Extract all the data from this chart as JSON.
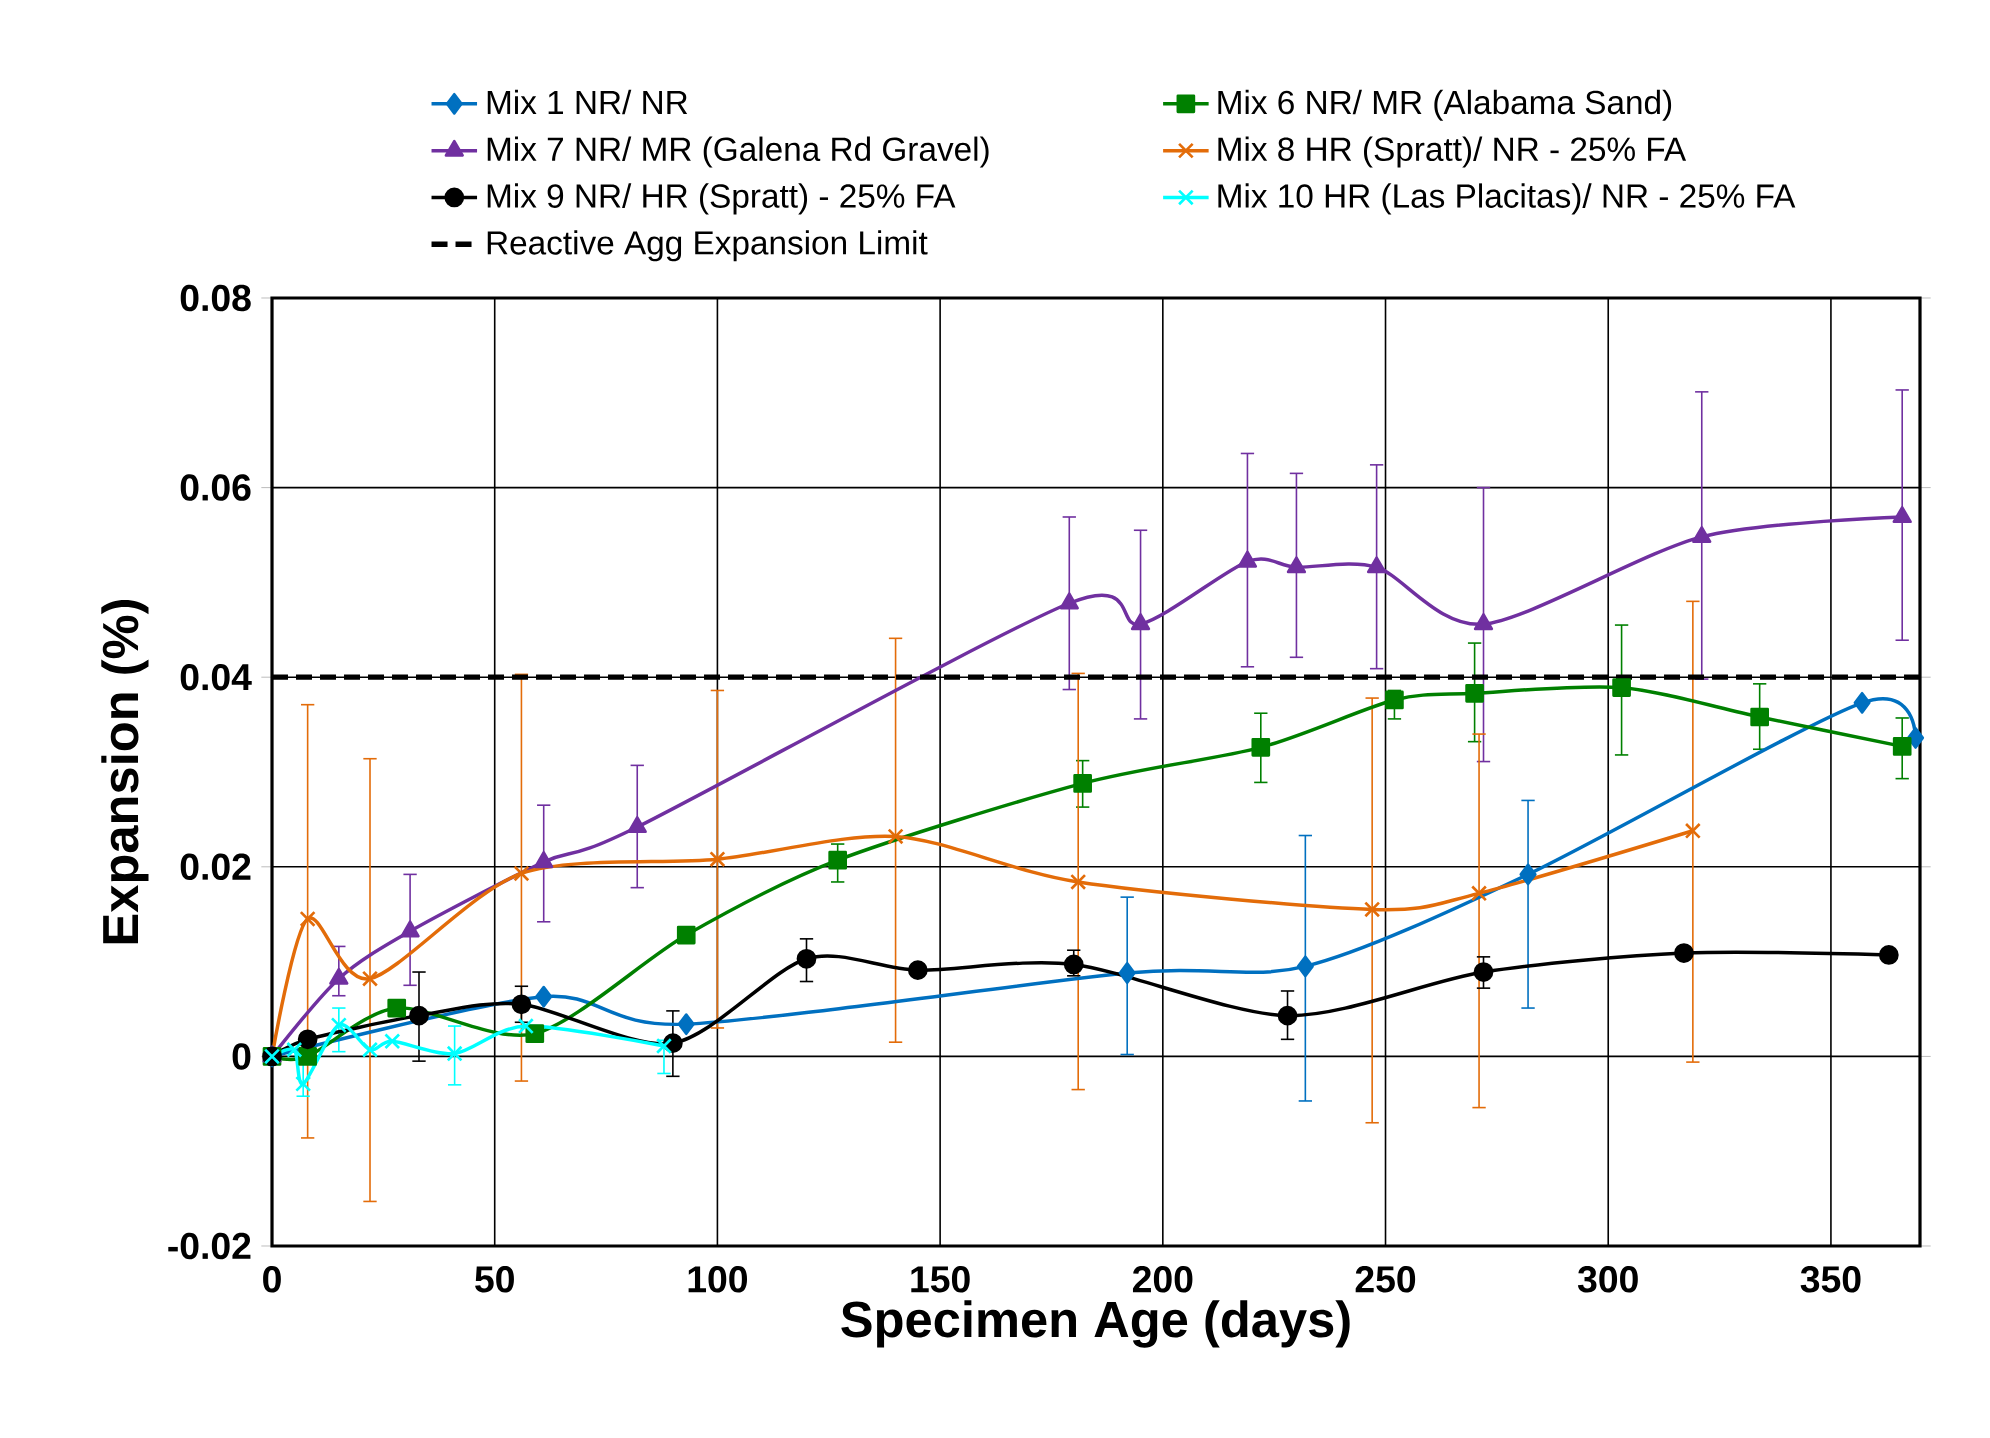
{
  "chart_data": {
    "type": "line",
    "xlabel": "Specimen Age (days)",
    "ylabel": "Expansion (%)",
    "xlim": [
      0,
      370
    ],
    "xticks": [
      0,
      50,
      100,
      150,
      200,
      250,
      300,
      350
    ],
    "ylim": [
      -0.02,
      0.08
    ],
    "yticks": [
      -0.02,
      0,
      0.02,
      0.04,
      0.06,
      0.08
    ],
    "grid": true,
    "legend": "top",
    "series": [
      {
        "name": "Mix 1 NR/ NR",
        "color": "#0070c0",
        "marker": "diamond",
        "x": [
          0,
          61,
          93,
          192,
          232,
          282,
          357,
          369
        ],
        "values": [
          0,
          0.0063,
          0.0034,
          0.0088,
          0.0095,
          0.0192,
          0.0373,
          0.0336
        ],
        "errors": [
          null,
          null,
          null,
          [
            0.0002,
            0.0168
          ],
          [
            -0.0047,
            0.0233
          ],
          [
            0.0051,
            0.027
          ],
          null,
          null
        ]
      },
      {
        "name": "Mix 6 NR/ MR (Alabama Sand)",
        "color": "#008000",
        "marker": "square",
        "x": [
          0,
          8,
          28,
          59,
          93,
          127,
          182,
          222,
          252,
          270,
          303,
          334,
          366
        ],
        "values": [
          0,
          0,
          0.0051,
          0.0024,
          0.0128,
          0.0207,
          0.0288,
          0.0326,
          0.0376,
          0.0383,
          0.0389,
          0.0358,
          0.0327
        ],
        "errors": [
          null,
          null,
          null,
          null,
          null,
          [
            0.0184,
            0.0224
          ],
          [
            0.0263,
            0.0312
          ],
          [
            0.0289,
            0.0362
          ],
          [
            0.0356,
            0.0386
          ],
          [
            0.0332,
            0.0436
          ],
          [
            0.0318,
            0.0455
          ],
          [
            0.0324,
            0.0393
          ],
          [
            0.0293,
            0.0357
          ]
        ]
      },
      {
        "name": "Mix 7 NR/ MR (Galena Rd Gravel)",
        "color": "#7030a0",
        "marker": "triangle",
        "x": [
          0,
          15,
          31,
          61,
          82,
          179,
          195,
          219,
          230,
          248,
          272,
          321,
          366
        ],
        "values": [
          0,
          0.0082,
          0.0132,
          0.0205,
          0.0242,
          0.0478,
          0.0456,
          0.0522,
          0.0516,
          0.0516,
          0.0456,
          0.0548,
          0.0569
        ],
        "errors": [
          null,
          [
            0.0064,
            0.0116
          ],
          [
            0.0075,
            0.0192
          ],
          [
            0.0142,
            0.0265
          ],
          [
            0.0178,
            0.0307
          ],
          [
            0.0387,
            0.0569
          ],
          [
            0.0356,
            0.0555
          ],
          [
            0.0411,
            0.0636
          ],
          [
            0.0421,
            0.0615
          ],
          [
            0.0409,
            0.0624
          ],
          [
            0.0311,
            0.06
          ],
          [
            0.0398,
            0.0701
          ],
          [
            0.0439,
            0.0703
          ]
        ]
      },
      {
        "name": "Mix 8 HR (Spratt)/ NR - 25% FA",
        "color": "#e36c09",
        "marker": "cross",
        "x": [
          0,
          8,
          22,
          56,
          100,
          140,
          181,
          247,
          271,
          319
        ],
        "values": [
          0,
          0.0145,
          0.0082,
          0.0193,
          0.0208,
          0.0232,
          0.0184,
          0.0155,
          0.0172,
          0.0238
        ],
        "errors": [
          null,
          [
            -0.0086,
            0.0371
          ],
          [
            -0.0153,
            0.0314
          ],
          [
            -0.0026,
            0.0403
          ],
          [
            0.003,
            0.0386
          ],
          [
            0.0015,
            0.0441
          ],
          [
            -0.0035,
            0.0404
          ],
          [
            -0.007,
            0.0378
          ],
          [
            -0.0054,
            0.034
          ],
          [
            -0.0006,
            0.048
          ]
        ]
      },
      {
        "name": "Mix 9 NR/ HR (Spratt) - 25% FA",
        "color": "#000000",
        "marker": "circle",
        "x": [
          0,
          8,
          33,
          56,
          90,
          120,
          145,
          180,
          228,
          272,
          317,
          363
        ],
        "values": [
          0,
          0.0018,
          0.0043,
          0.0055,
          0.0014,
          0.0103,
          0.0091,
          0.0097,
          0.0043,
          0.0089,
          0.0109,
          0.0107
        ],
        "errors": [
          null,
          null,
          [
            -0.0005,
            0.0089
          ],
          [
            0.0036,
            0.0074
          ],
          [
            -0.0021,
            0.0048
          ],
          [
            0.0079,
            0.0124
          ],
          null,
          [
            0.0085,
            0.0112
          ],
          [
            0.0018,
            0.0069
          ],
          [
            0.0072,
            0.0105
          ],
          null,
          null
        ]
      },
      {
        "name": "Mix 10 HR (Las Placitas)/ NR - 25% FA",
        "color": "#00ffff",
        "marker": "cross",
        "x": [
          0,
          5,
          7,
          15,
          22,
          27,
          41,
          57,
          88
        ],
        "values": [
          0,
          0.0007,
          -0.0029,
          0.0033,
          0.0007,
          0.0016,
          0.0003,
          0.0032,
          0.0011
        ],
        "errors": [
          null,
          null,
          [
            -0.0042,
            0.0015
          ],
          [
            0.0005,
            0.0051
          ],
          null,
          null,
          [
            -0.003,
            0.0032
          ],
          null,
          [
            -0.0018,
            0.0017
          ]
        ]
      }
    ],
    "ref_lines": [
      {
        "axis": "y",
        "value": 0.04,
        "label": "Reactive Agg Expansion Limit",
        "color": "#000000",
        "line_style": "dashed"
      }
    ]
  }
}
